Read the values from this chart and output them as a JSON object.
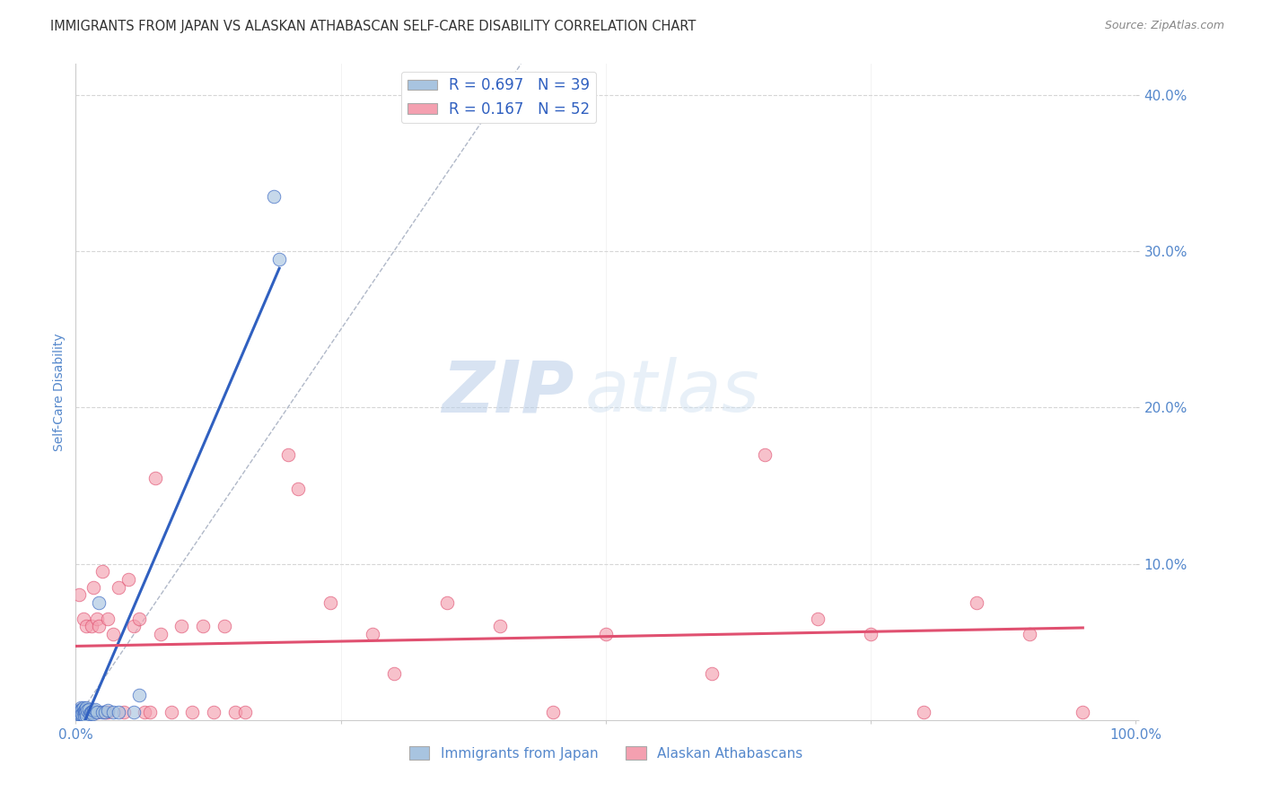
{
  "title": "IMMIGRANTS FROM JAPAN VS ALASKAN ATHABASCAN SELF-CARE DISABILITY CORRELATION CHART",
  "source": "Source: ZipAtlas.com",
  "ylabel": "Self-Care Disability",
  "xlim": [
    0,
    1.0
  ],
  "ylim": [
    0,
    0.42
  ],
  "color_japan": "#a8c4e0",
  "color_athabascan": "#f4a0b0",
  "line_color_japan": "#3060c0",
  "line_color_athabascan": "#e05070",
  "diagonal_color": "#b0b8c8",
  "background_color": "#ffffff",
  "grid_color": "#cccccc",
  "watermark_zip": "ZIP",
  "watermark_atlas": "atlas",
  "title_color": "#333333",
  "axis_label_color": "#5588cc",
  "r_japan": 0.697,
  "n_japan": 39,
  "r_athabascan": 0.167,
  "n_athabascan": 52,
  "japan_scatter_x": [
    0.001,
    0.002,
    0.002,
    0.003,
    0.003,
    0.004,
    0.004,
    0.005,
    0.005,
    0.005,
    0.006,
    0.006,
    0.007,
    0.007,
    0.008,
    0.008,
    0.009,
    0.009,
    0.01,
    0.01,
    0.011,
    0.012,
    0.013,
    0.014,
    0.015,
    0.016,
    0.017,
    0.018,
    0.02,
    0.022,
    0.025,
    0.028,
    0.03,
    0.035,
    0.04,
    0.055,
    0.06,
    0.187,
    0.192
  ],
  "japan_scatter_y": [
    0.003,
    0.004,
    0.005,
    0.006,
    0.005,
    0.004,
    0.006,
    0.005,
    0.008,
    0.006,
    0.007,
    0.004,
    0.005,
    0.008,
    0.006,
    0.003,
    0.007,
    0.005,
    0.008,
    0.003,
    0.006,
    0.007,
    0.004,
    0.005,
    0.005,
    0.004,
    0.006,
    0.007,
    0.005,
    0.075,
    0.005,
    0.005,
    0.006,
    0.005,
    0.005,
    0.005,
    0.016,
    0.335,
    0.295
  ],
  "athabascan_scatter_x": [
    0.003,
    0.005,
    0.007,
    0.008,
    0.01,
    0.012,
    0.015,
    0.017,
    0.02,
    0.022,
    0.025,
    0.028,
    0.03,
    0.035,
    0.04,
    0.045,
    0.05,
    0.055,
    0.06,
    0.065,
    0.07,
    0.075,
    0.08,
    0.09,
    0.1,
    0.11,
    0.12,
    0.13,
    0.14,
    0.15,
    0.16,
    0.2,
    0.21,
    0.24,
    0.28,
    0.3,
    0.35,
    0.4,
    0.45,
    0.5,
    0.6,
    0.65,
    0.7,
    0.75,
    0.8,
    0.85,
    0.9,
    0.95,
    0.005,
    0.01,
    0.02,
    0.03
  ],
  "athabascan_scatter_y": [
    0.08,
    0.007,
    0.065,
    0.005,
    0.06,
    0.005,
    0.06,
    0.085,
    0.065,
    0.06,
    0.095,
    0.005,
    0.065,
    0.055,
    0.085,
    0.005,
    0.09,
    0.06,
    0.065,
    0.005,
    0.005,
    0.155,
    0.055,
    0.005,
    0.06,
    0.005,
    0.06,
    0.005,
    0.06,
    0.005,
    0.005,
    0.17,
    0.148,
    0.075,
    0.055,
    0.03,
    0.075,
    0.06,
    0.005,
    0.055,
    0.03,
    0.17,
    0.065,
    0.055,
    0.005,
    0.075,
    0.055,
    0.005,
    0.005,
    0.005,
    0.005,
    0.005
  ],
  "legend_label_japan": "Immigrants from Japan",
  "legend_label_athabascan": "Alaskan Athabascans"
}
